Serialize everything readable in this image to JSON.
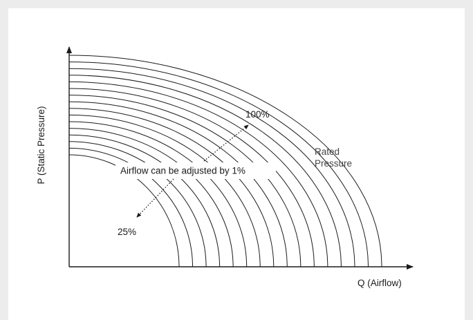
{
  "diagram": {
    "x_axis_label": "Q (Airflow)",
    "y_axis_label": "P (Static Pressure)",
    "max_label": "100%",
    "min_label": "25%",
    "rated_label_line1": "Rated",
    "rated_label_line2": "Pressure",
    "adjust_label": "Airflow can be adjusted by 1%"
  },
  "curves": {
    "count": 16
  },
  "colors": {
    "line": "#1a1a1a",
    "background": "#ffffff",
    "frame": "#ececec"
  }
}
